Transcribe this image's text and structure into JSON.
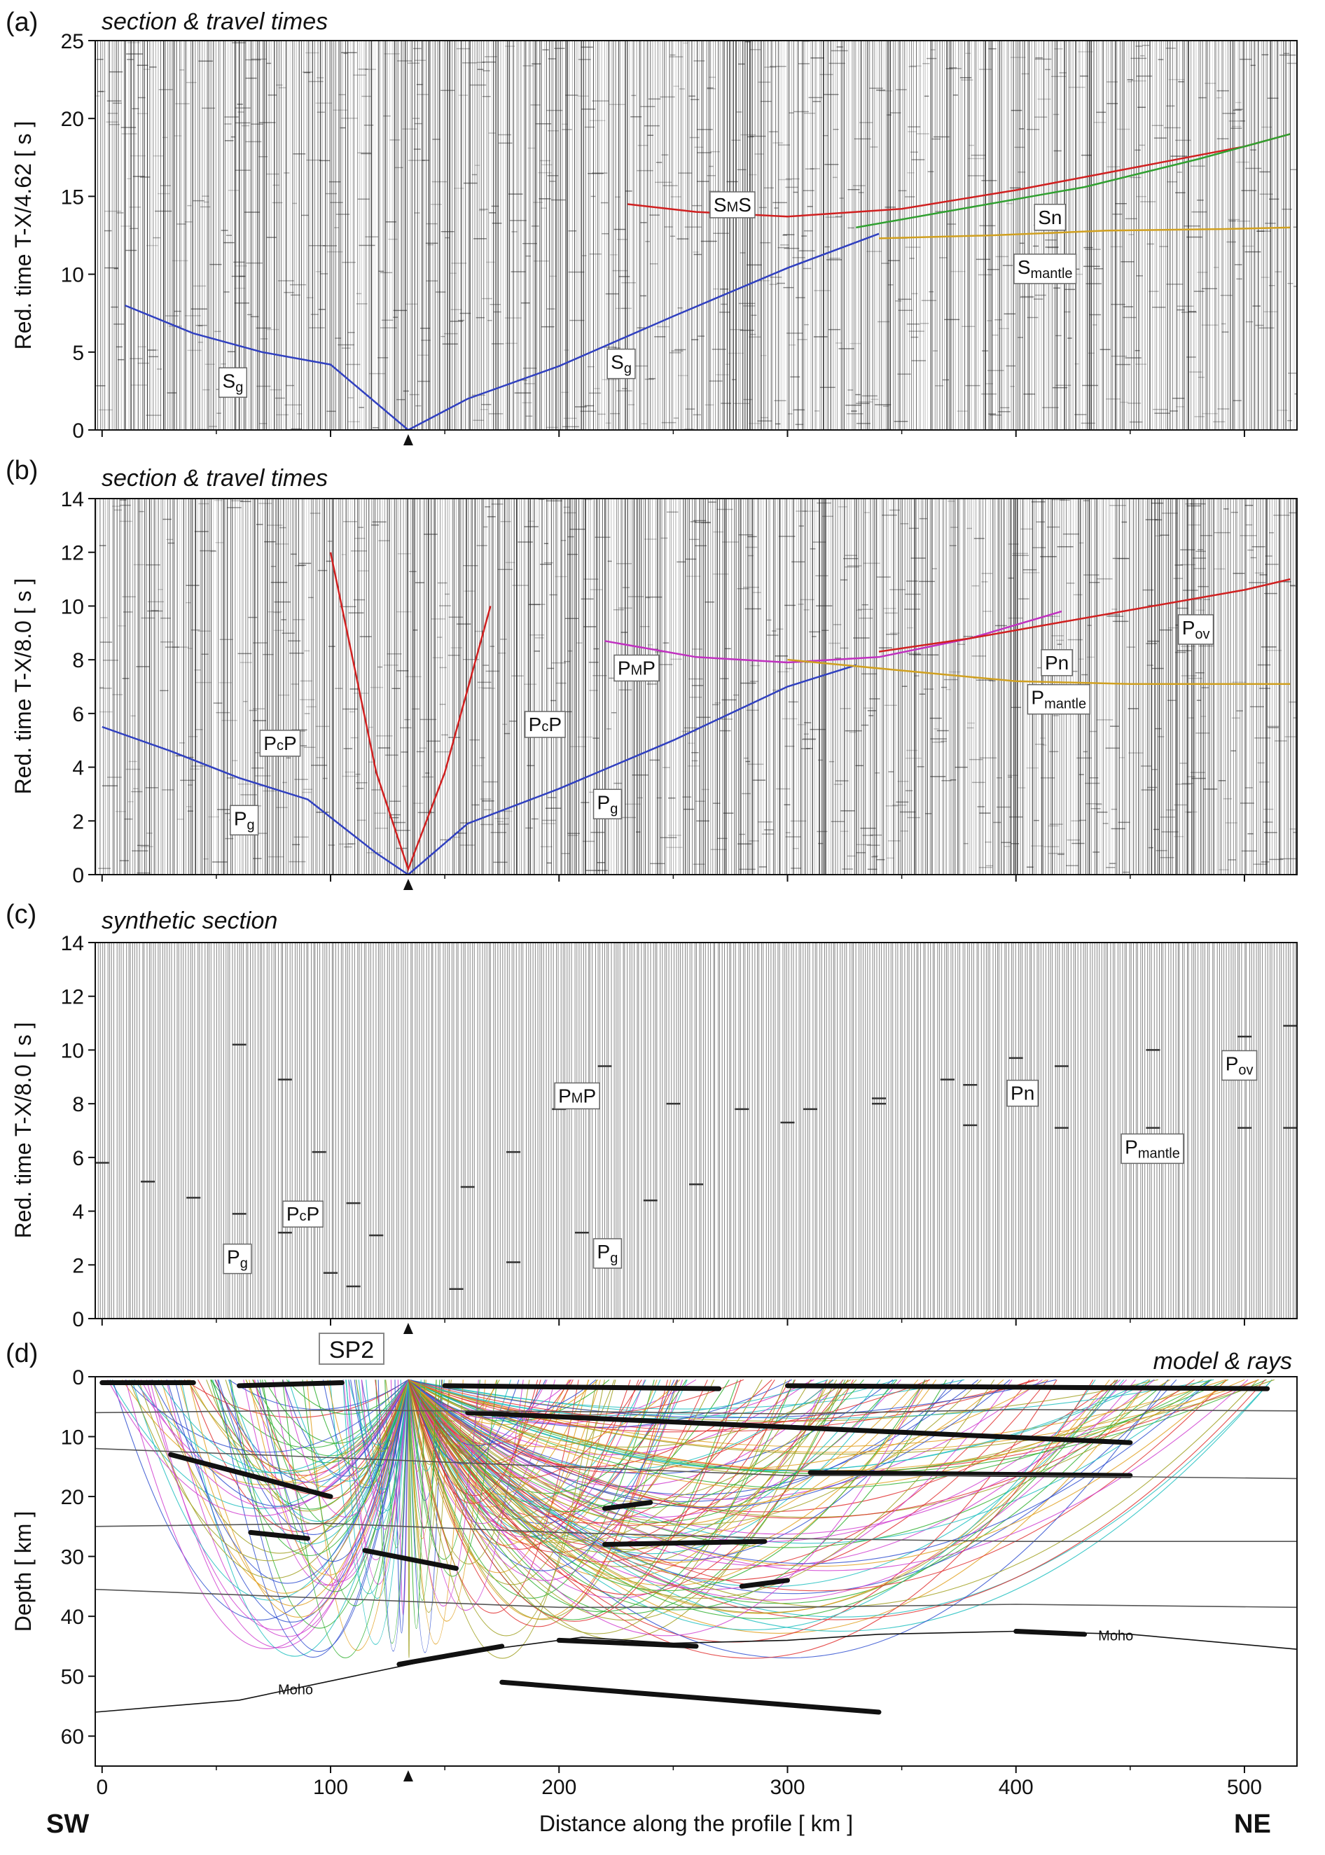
{
  "figure": {
    "shot_point": "SP2",
    "shot_x_km": 134,
    "side_left": "SW",
    "side_right": "NE",
    "x_axis_label": "Distance along the profile  [ km ]",
    "x_ticks": [
      0,
      100,
      200,
      300,
      400,
      500
    ]
  },
  "panels": [
    {
      "id": "a",
      "label": "(a)",
      "title": "section & travel times",
      "ylabel": "Red. time  T-X/4.62  [ s ]",
      "yticks": [
        0,
        5,
        10,
        15,
        20,
        25
      ],
      "phases": [
        {
          "main": "S",
          "sub": "g",
          "sup": "",
          "rest": "",
          "x": 60,
          "y": 3
        },
        {
          "main": "S",
          "sub": "g",
          "sup": "",
          "rest": "",
          "x": 230,
          "y": 4.2
        },
        {
          "main": "S",
          "sub": "",
          "sup": "M",
          "rest": "S",
          "x": 275,
          "y": 14.3
        },
        {
          "main": "Sn",
          "sub": "",
          "sup": "",
          "rest": "",
          "x": 417,
          "y": 13.5
        },
        {
          "main": "S",
          "sub": "mantle",
          "sup": "",
          "rest": "",
          "x": 408,
          "y": 10.3
        }
      ]
    },
    {
      "id": "b",
      "label": "(b)",
      "title": "section & travel times",
      "ylabel": "Red. time  T-X/8.0  [ s ]",
      "yticks": [
        0,
        2,
        4,
        6,
        8,
        10,
        12,
        14
      ],
      "phases": [
        {
          "main": "P",
          "sub": "g",
          "sup": "",
          "rest": "",
          "x": 65,
          "y": 2
        },
        {
          "main": "P",
          "sub": "",
          "sup": "c",
          "rest": "P",
          "x": 78,
          "y": 4.8
        },
        {
          "main": "P",
          "sub": "",
          "sup": "c",
          "rest": "P",
          "x": 194,
          "y": 5.5
        },
        {
          "main": "P",
          "sub": "g",
          "sup": "",
          "rest": "",
          "x": 224,
          "y": 2.6
        },
        {
          "main": "P",
          "sub": "",
          "sup": "M",
          "rest": "P",
          "x": 233,
          "y": 7.6
        },
        {
          "main": "Pn",
          "sub": "",
          "sup": "",
          "rest": "",
          "x": 420,
          "y": 7.8
        },
        {
          "main": "P",
          "sub": "mantle",
          "sup": "",
          "rest": "",
          "x": 414,
          "y": 6.5
        },
        {
          "main": "P",
          "sub": "ov",
          "sup": "",
          "rest": "",
          "x": 480,
          "y": 9.1
        }
      ]
    },
    {
      "id": "c",
      "label": "(c)",
      "title": "synthetic section",
      "ylabel": "Red. time  T-X/8.0  [ s ]",
      "yticks": [
        0,
        2,
        4,
        6,
        8,
        10,
        12,
        14
      ],
      "phases": [
        {
          "main": "P",
          "sub": "g",
          "sup": "",
          "rest": "",
          "x": 62,
          "y": 2.2
        },
        {
          "main": "P",
          "sub": "",
          "sup": "c",
          "rest": "P",
          "x": 88,
          "y": 3.8
        },
        {
          "main": "P",
          "sub": "g",
          "sup": "",
          "rest": "",
          "x": 224,
          "y": 2.4
        },
        {
          "main": "P",
          "sub": "",
          "sup": "M",
          "rest": "P",
          "x": 207,
          "y": 8.2
        },
        {
          "main": "Pn",
          "sub": "",
          "sup": "",
          "rest": "",
          "x": 405,
          "y": 8.3
        },
        {
          "main": "P",
          "sub": "mantle",
          "sup": "",
          "rest": "",
          "x": 455,
          "y": 6.3
        },
        {
          "main": "P",
          "sub": "ov",
          "sup": "",
          "rest": "",
          "x": 499,
          "y": 9.4
        }
      ]
    },
    {
      "id": "d",
      "label": "(d)",
      "title": "model & rays",
      "ylabel": "Depth  [ km ]",
      "yticks": [
        0,
        10,
        20,
        30,
        40,
        50,
        60
      ],
      "moho_label": "Moho"
    }
  ],
  "chart_data": [
    {
      "type": "line",
      "title": "section & travel times",
      "xlabel": "Distance along the profile  [ km ]",
      "ylabel": "Red. time  T-X/4.62  [ s ]",
      "xlim": [
        -3,
        523
      ],
      "ylim": [
        0,
        25
      ],
      "series": [
        {
          "name": "Sg",
          "color": "#3040c0",
          "x": [
            10,
            40,
            70,
            100,
            134,
            160,
            200,
            250,
            300,
            340
          ],
          "y": [
            8,
            6.2,
            5,
            4.2,
            0,
            2,
            4.1,
            7.3,
            10.4,
            12.6
          ]
        },
        {
          "name": "SmS",
          "color": "#d02020",
          "x": [
            230,
            260,
            300,
            350,
            400,
            450,
            500,
            520
          ],
          "y": [
            14.5,
            14,
            13.7,
            14.2,
            15.4,
            16.8,
            18.2,
            19
          ]
        },
        {
          "name": "Sn",
          "color": "#30a030",
          "x": [
            330,
            380,
            430,
            480,
            520
          ],
          "y": [
            13,
            14.3,
            15.6,
            17.4,
            19
          ]
        },
        {
          "name": "Smantle",
          "color": "#d0a020",
          "x": [
            340,
            390,
            440,
            490,
            520
          ],
          "y": [
            12.3,
            12.5,
            12.8,
            12.9,
            13
          ]
        }
      ]
    },
    {
      "type": "line",
      "title": "section & travel times",
      "xlabel": "Distance along the profile  [ km ]",
      "ylabel": "Red. time  T-X/8.0  [ s ]",
      "xlim": [
        -3,
        523
      ],
      "ylim": [
        0,
        14
      ],
      "series": [
        {
          "name": "Pg",
          "color": "#3040c0",
          "x": [
            0,
            30,
            60,
            90,
            120,
            134,
            160,
            200,
            250,
            300,
            330
          ],
          "y": [
            5.5,
            4.6,
            3.6,
            2.8,
            0.8,
            0,
            1.9,
            3.2,
            5,
            7,
            7.8
          ]
        },
        {
          "name": "PcP",
          "color": "#d02020",
          "x": [
            100,
            120,
            134,
            150,
            170
          ],
          "y": [
            12,
            3.8,
            0.2,
            3.8,
            10
          ]
        },
        {
          "name": "PmP",
          "color": "#c030c0",
          "x": [
            220,
            260,
            300,
            340,
            380,
            420
          ],
          "y": [
            8.7,
            8.1,
            7.9,
            8.1,
            8.8,
            9.8
          ]
        },
        {
          "name": "Pn",
          "color": "#d02020",
          "x": [
            340,
            380,
            420,
            460,
            500,
            520
          ],
          "y": [
            8.3,
            8.8,
            9.4,
            10,
            10.6,
            11
          ]
        },
        {
          "name": "Pmantle",
          "color": "#d0a020",
          "x": [
            300,
            350,
            400,
            450,
            500,
            520
          ],
          "y": [
            8,
            7.6,
            7.2,
            7.1,
            7.1,
            7.1
          ]
        }
      ]
    },
    {
      "type": "scatter",
      "title": "synthetic section",
      "xlabel": "Distance along the profile  [ km ]",
      "ylabel": "Red. time  T-X/8.0  [ s ]",
      "xlim": [
        -3,
        523
      ],
      "ylim": [
        0,
        14
      ],
      "series": [
        {
          "name": "Pg",
          "x": [
            0,
            20,
            40,
            60,
            80,
            100,
            110,
            155,
            180,
            210,
            240,
            260
          ],
          "y": [
            5.8,
            5.1,
            4.5,
            3.9,
            3.2,
            1.7,
            1.2,
            1.1,
            2.1,
            3.2,
            4.4,
            5
          ]
        },
        {
          "name": "PcP",
          "x": [
            60,
            80,
            95,
            110,
            120,
            160,
            180,
            200,
            220
          ],
          "y": [
            10.2,
            8.9,
            6.2,
            4.3,
            3.1,
            4.9,
            6.2,
            7.8,
            9.4
          ]
        },
        {
          "name": "PmP",
          "x": [
            250,
            280,
            310,
            340,
            370,
            400
          ],
          "y": [
            8,
            7.8,
            7.8,
            8.2,
            8.9,
            9.7
          ]
        },
        {
          "name": "Pn",
          "x": [
            300,
            340,
            380,
            420,
            460,
            500,
            520
          ],
          "y": [
            7.3,
            8,
            8.7,
            9.4,
            10,
            10.5,
            10.9
          ]
        },
        {
          "name": "Pmantle",
          "x": [
            380,
            420,
            460,
            500,
            520
          ],
          "y": [
            7.2,
            7.1,
            7.1,
            7.1,
            7.1
          ]
        }
      ]
    },
    {
      "type": "line",
      "title": "model & rays",
      "xlabel": "Distance along the profile  [ km ]",
      "ylabel": "Depth  [ km ]",
      "xlim": [
        -3,
        523
      ],
      "ylim": [
        0,
        65
      ],
      "y_inverted": true,
      "series": [
        {
          "name": "Moho",
          "color": "#111111",
          "x": [
            -3,
            60,
            110,
            160,
            210,
            250,
            300,
            340,
            400,
            450,
            523
          ],
          "y": [
            56,
            54,
            50,
            46,
            43.5,
            44.5,
            44,
            43,
            42.5,
            43,
            45.5
          ]
        },
        {
          "name": "",
          "color": "#555555",
          "x": [
            -3,
            100,
            200,
            300,
            400,
            523
          ],
          "y": [
            6,
            5.6,
            5.8,
            6.2,
            5.5,
            5.7
          ]
        },
        {
          "name": "",
          "color": "#555555",
          "x": [
            -3,
            100,
            200,
            300,
            400,
            523
          ],
          "y": [
            12,
            13.5,
            15,
            16.5,
            16.5,
            17
          ]
        },
        {
          "name": "",
          "color": "#555555",
          "x": [
            -3,
            100,
            200,
            300,
            400,
            523
          ],
          "y": [
            25,
            24.5,
            26,
            27,
            27.5,
            27.5
          ]
        },
        {
          "name": "",
          "color": "#555555",
          "x": [
            -3,
            100,
            200,
            300,
            400,
            523
          ],
          "y": [
            35.5,
            37,
            38.5,
            38.5,
            38,
            38.5
          ]
        }
      ]
    }
  ]
}
